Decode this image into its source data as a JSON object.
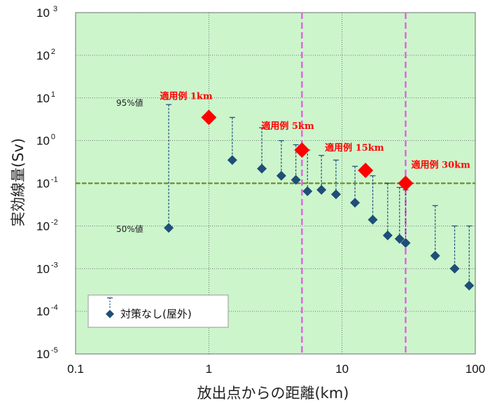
{
  "chart_data": {
    "type": "scatter",
    "xscale": "log",
    "yscale": "log",
    "xlim": [
      0.1,
      100
    ],
    "ylim": [
      1e-05,
      1000
    ],
    "xticks": [
      "0.1",
      "1",
      "10",
      "100"
    ],
    "yticks": [
      {
        "base": "10",
        "exp": "-5"
      },
      {
        "base": "10",
        "exp": "-4"
      },
      {
        "base": "10",
        "exp": "-3"
      },
      {
        "base": "10",
        "exp": "-2"
      },
      {
        "base": "10",
        "exp": "-1"
      },
      {
        "base": "10",
        "exp": "0"
      },
      {
        "base": "10",
        "exp": "1"
      },
      {
        "base": "10",
        "exp": "2"
      },
      {
        "base": "10",
        "exp": " 3"
      }
    ],
    "xlabel": "放出点からの距離(km)",
    "ylabel": "実効線量(Sv)",
    "grid": true,
    "background": "#ccf5cc",
    "legend": {
      "label": "対策なし(屋外)",
      "placement": "bottom-left"
    },
    "series": [
      {
        "name": "対策なし(屋外)",
        "marker": "diamond",
        "color": "#1f4e79",
        "median": [
          {
            "x": 0.5,
            "y": 0.009
          },
          {
            "x": 1.5,
            "y": 0.35
          },
          {
            "x": 2.5,
            "y": 0.22
          },
          {
            "x": 3.5,
            "y": 0.15
          },
          {
            "x": 4.5,
            "y": 0.12
          },
          {
            "x": 5.5,
            "y": 0.065
          },
          {
            "x": 7.0,
            "y": 0.07
          },
          {
            "x": 9.0,
            "y": 0.055
          },
          {
            "x": 12.5,
            "y": 0.035
          },
          {
            "x": 17.0,
            "y": 0.014
          },
          {
            "x": 22.0,
            "y": 0.006
          },
          {
            "x": 27.0,
            "y": 0.005
          },
          {
            "x": 30.0,
            "y": 0.004
          },
          {
            "x": 50.0,
            "y": 0.002
          },
          {
            "x": 70.0,
            "y": 0.001
          },
          {
            "x": 90.0,
            "y": 0.0004
          }
        ],
        "p95": [
          {
            "x": 0.5,
            "y": 7
          },
          {
            "x": 1.5,
            "y": 3.5
          },
          {
            "x": 2.5,
            "y": 2.0
          },
          {
            "x": 3.5,
            "y": 1.0
          },
          {
            "x": 4.5,
            "y": 0.8
          },
          {
            "x": 5.5,
            "y": 0.6
          },
          {
            "x": 7.0,
            "y": 0.45
          },
          {
            "x": 9.0,
            "y": 0.35
          },
          {
            "x": 12.5,
            "y": 0.25
          },
          {
            "x": 17.0,
            "y": 0.15
          },
          {
            "x": 22.0,
            "y": 0.1
          },
          {
            "x": 27.0,
            "y": 0.08
          },
          {
            "x": 30.0,
            "y": 0.07
          },
          {
            "x": 50.0,
            "y": 0.03
          },
          {
            "x": 70.0,
            "y": 0.01
          },
          {
            "x": 90.0,
            "y": 0.01
          }
        ]
      }
    ],
    "application_examples": [
      {
        "label": "適用例 1km",
        "x": 1,
        "y": 3.5
      },
      {
        "label": "適用例 5km",
        "x": 5,
        "y": 0.6
      },
      {
        "label": "適用例 15km",
        "x": 15,
        "y": 0.2
      },
      {
        "label": "適用例 30km",
        "x": 30,
        "y": 0.1
      }
    ],
    "reference_line": {
      "y": 0.1,
      "style": "dashed",
      "color": "#6b8e23"
    },
    "vertical_lines": [
      {
        "x": 5,
        "style": "dashed",
        "color": "#e066e0"
      },
      {
        "x": 30,
        "style": "dashed",
        "color": "#e066e0"
      }
    ],
    "annotations": {
      "p95_label": "95%値",
      "p50_label": "50%値"
    }
  }
}
